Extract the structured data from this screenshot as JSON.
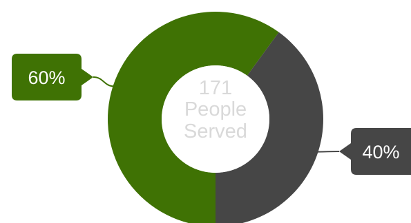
{
  "chart_data": {
    "type": "pie",
    "style": "donut",
    "center_label": {
      "number": "171",
      "line1": "People",
      "line2": "Served"
    },
    "slices": [
      {
        "label": "60%",
        "value": 60,
        "color": "#3f7204"
      },
      {
        "label": "40%",
        "value": 40,
        "color": "#464646"
      }
    ]
  }
}
